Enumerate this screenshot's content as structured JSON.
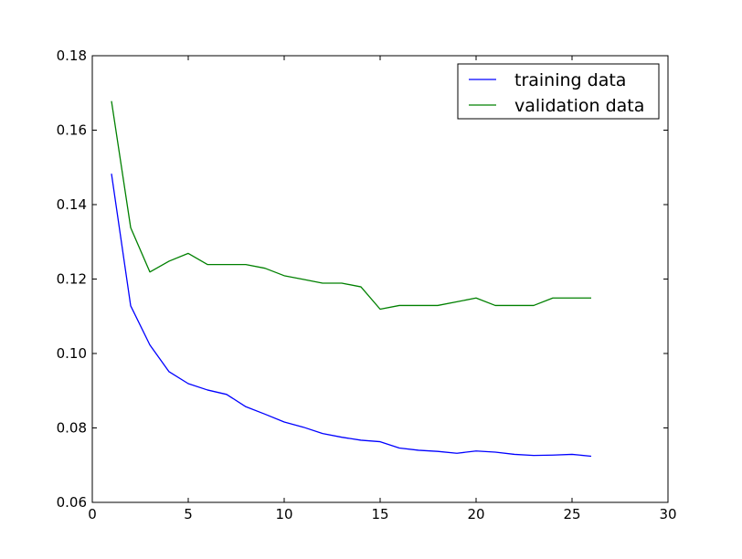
{
  "chart_data": {
    "type": "line",
    "title": "",
    "xlabel": "",
    "ylabel": "",
    "xlim": [
      0,
      30
    ],
    "ylim": [
      0.06,
      0.18
    ],
    "xticks": [
      0,
      5,
      10,
      15,
      20,
      25,
      30
    ],
    "xtick_labels": [
      "0",
      "5",
      "10",
      "15",
      "20",
      "25",
      "30"
    ],
    "yticks": [
      0.06,
      0.08,
      0.1,
      0.12,
      0.14,
      0.16,
      0.18
    ],
    "ytick_labels": [
      "0.06",
      "0.08",
      "0.10",
      "0.12",
      "0.14",
      "0.16",
      "0.18"
    ],
    "grid": false,
    "legend_position": "top-right",
    "x": [
      1,
      2,
      3,
      4,
      5,
      6,
      7,
      8,
      9,
      10,
      11,
      12,
      13,
      14,
      15,
      16,
      17,
      18,
      19,
      20,
      21,
      22,
      23,
      24,
      25,
      26
    ],
    "series": [
      {
        "name": "training data",
        "color": "#0000ff",
        "values": [
          0.1483,
          0.1128,
          0.1023,
          0.0951,
          0.0919,
          0.0902,
          0.089,
          0.0857,
          0.0837,
          0.0816,
          0.0802,
          0.0785,
          0.0775,
          0.0767,
          0.0763,
          0.0746,
          0.074,
          0.0737,
          0.0732,
          0.0738,
          0.0735,
          0.0729,
          0.0726,
          0.0727,
          0.0729,
          0.0724
        ]
      },
      {
        "name": "validation data",
        "color": "#008000",
        "values": [
          0.1678,
          0.1338,
          0.1219,
          0.1248,
          0.1269,
          0.1239,
          0.1239,
          0.1239,
          0.1229,
          0.1209,
          0.1199,
          0.1189,
          0.1189,
          0.1179,
          0.1119,
          0.1129,
          0.1129,
          0.1129,
          0.1139,
          0.1149,
          0.1129,
          0.1129,
          0.1129,
          0.1149,
          0.1149,
          0.1149
        ]
      }
    ]
  }
}
